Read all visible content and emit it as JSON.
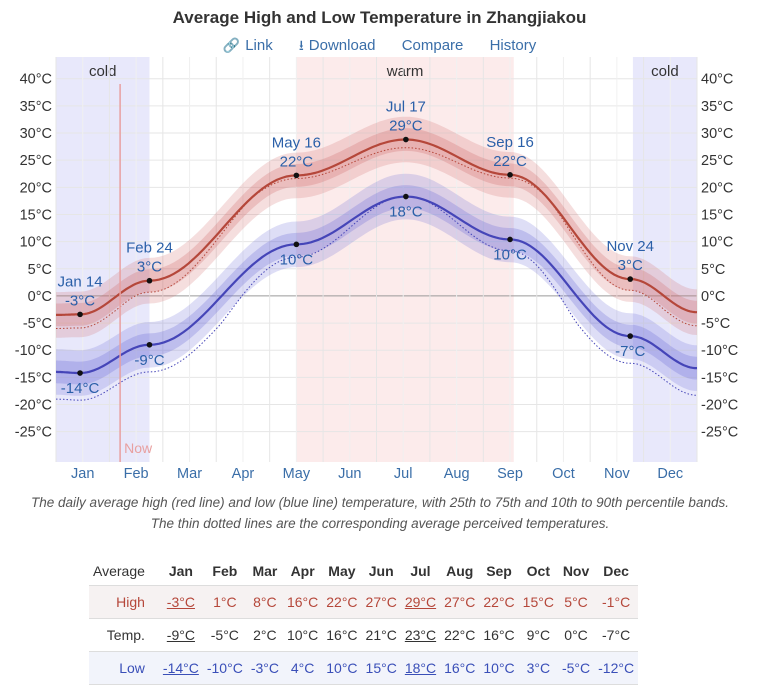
{
  "page": {
    "title": "Average High and Low Temperature in Zhangjiakou",
    "links": [
      {
        "icon": "link-icon",
        "glyph": "🔗",
        "label": "Link"
      },
      {
        "icon": "download-icon",
        "glyph": "⭳",
        "label": "Download"
      },
      {
        "icon": "",
        "glyph": "",
        "label": "Compare"
      },
      {
        "icon": "",
        "glyph": "",
        "label": "History"
      }
    ],
    "caption": "The daily average high (red line) and low (blue line) temperature, with 25th to 75th and 10th to 90th percentile bands. The thin dotted lines are the corresponding average perceived temperatures."
  },
  "chart_data": {
    "type": "line",
    "x_unit": "month",
    "xlim": [
      0,
      12
    ],
    "ylim": [
      -27,
      43
    ],
    "yticks": [
      -25,
      -20,
      -15,
      -10,
      -5,
      0,
      5,
      10,
      15,
      20,
      25,
      30,
      35,
      40
    ],
    "ytick_labels": [
      "-25°C",
      "-20°C",
      "-15°C",
      "-10°C",
      "-5°C",
      "0°C",
      "5°C",
      "10°C",
      "15°C",
      "20°C",
      "25°C",
      "30°C",
      "35°C",
      "40°C"
    ],
    "months": [
      "Jan",
      "Feb",
      "Mar",
      "Apr",
      "May",
      "Jun",
      "Jul",
      "Aug",
      "Sep",
      "Oct",
      "Nov",
      "Dec"
    ],
    "grid": true,
    "seasons": [
      {
        "label": "cold",
        "start_month": 0,
        "end_month": 1.75,
        "color": "#e8e8fb"
      },
      {
        "label": "warm",
        "start_month": 4.5,
        "end_month": 8.57,
        "color": "#fcebeb"
      },
      {
        "label": "cold",
        "start_month": 10.8,
        "end_month": 12,
        "color": "#e8e8fb"
      }
    ],
    "now": {
      "label": "Now",
      "month": 1.2
    },
    "series": [
      {
        "key": "high",
        "color": "#b5473a",
        "x": [
          0,
          0.45,
          1.75,
          4.5,
          6.55,
          8.5,
          10.75,
          12
        ],
        "y": [
          -3.5,
          -3.4,
          2.8,
          22.2,
          28.8,
          22.3,
          3.1,
          -3.0
        ]
      },
      {
        "key": "low",
        "color": "#4545b8",
        "x": [
          0,
          0.45,
          1.75,
          4.5,
          6.55,
          8.5,
          10.75,
          12
        ],
        "y": [
          -14.0,
          -14.2,
          -9.0,
          9.5,
          18.3,
          10.4,
          -7.4,
          -13.3
        ]
      }
    ],
    "annotations": [
      {
        "series": "high",
        "month": 0.45,
        "value": -3.4,
        "date": "Jan 14",
        "temp": "-3°C",
        "pos": "above"
      },
      {
        "series": "high",
        "month": 1.75,
        "value": 2.8,
        "date": "Feb 24",
        "temp": "3°C",
        "pos": "above"
      },
      {
        "series": "high",
        "month": 4.5,
        "value": 22.2,
        "date": "May 16",
        "temp": "22°C",
        "pos": "above"
      },
      {
        "series": "high",
        "month": 6.55,
        "value": 28.8,
        "date": "Jul 17",
        "temp": "29°C",
        "pos": "above"
      },
      {
        "series": "high",
        "month": 8.5,
        "value": 22.3,
        "date": "Sep 16",
        "temp": "22°C",
        "pos": "above"
      },
      {
        "series": "high",
        "month": 10.75,
        "value": 3.1,
        "date": "Nov 24",
        "temp": "3°C",
        "pos": "above"
      },
      {
        "series": "low",
        "month": 0.45,
        "value": -14.2,
        "date": "",
        "temp": "-14°C",
        "pos": "below"
      },
      {
        "series": "low",
        "month": 1.75,
        "value": -9.0,
        "date": "",
        "temp": "-9°C",
        "pos": "below"
      },
      {
        "series": "low",
        "month": 4.5,
        "value": 9.5,
        "date": "",
        "temp": "10°C",
        "pos": "below"
      },
      {
        "series": "low",
        "month": 6.55,
        "value": 18.3,
        "date": "",
        "temp": "18°C",
        "pos": "below"
      },
      {
        "series": "low",
        "month": 8.5,
        "value": 10.4,
        "date": "",
        "temp": "10°C",
        "pos": "below"
      },
      {
        "series": "low",
        "month": 10.75,
        "value": -7.4,
        "date": "",
        "temp": "-7°C",
        "pos": "below"
      }
    ]
  },
  "table": {
    "header_label": "Average",
    "months": [
      "Jan",
      "Feb",
      "Mar",
      "Apr",
      "May",
      "Jun",
      "Jul",
      "Aug",
      "Sep",
      "Oct",
      "Nov",
      "Dec"
    ],
    "rows": [
      {
        "key": "high",
        "label": "High",
        "values": [
          "-3°C",
          "1°C",
          "8°C",
          "16°C",
          "22°C",
          "27°C",
          "29°C",
          "27°C",
          "22°C",
          "15°C",
          "5°C",
          "-1°C"
        ],
        "underline": [
          0,
          6
        ]
      },
      {
        "key": "temp",
        "label": "Temp.",
        "values": [
          "-9°C",
          "-5°C",
          "2°C",
          "10°C",
          "16°C",
          "21°C",
          "23°C",
          "22°C",
          "16°C",
          "9°C",
          "0°C",
          "-7°C"
        ],
        "underline": [
          0,
          6
        ]
      },
      {
        "key": "low",
        "label": "Low",
        "values": [
          "-14°C",
          "-10°C",
          "-3°C",
          "4°C",
          "10°C",
          "15°C",
          "18°C",
          "16°C",
          "10°C",
          "3°C",
          "-5°C",
          "-12°C"
        ],
        "underline": [
          0,
          6
        ]
      }
    ]
  }
}
